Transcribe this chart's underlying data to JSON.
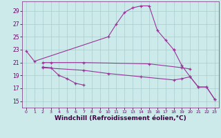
{
  "background_color": "#cceaea",
  "grid_color": "#aacccc",
  "line_color": "#993399",
  "xlabel": "Windchill (Refroidissement éolien,°C)",
  "xlabel_fontsize": 6.5,
  "ylim": [
    14.0,
    30.5
  ],
  "xlim": [
    -0.5,
    23.5
  ],
  "yticks": [
    15,
    17,
    19,
    21,
    23,
    25,
    27,
    29
  ],
  "xticks": [
    0,
    1,
    2,
    3,
    4,
    5,
    6,
    7,
    8,
    9,
    10,
    11,
    12,
    13,
    14,
    15,
    16,
    17,
    18,
    19,
    20,
    21,
    22,
    23
  ],
  "curve1_x": [
    0,
    1,
    10,
    11,
    12,
    13,
    14,
    15,
    16,
    17,
    18
  ],
  "curve1_y": [
    22.8,
    21.2,
    25.0,
    27.0,
    28.8,
    29.5,
    29.8,
    29.8,
    26.0,
    24.5,
    23.0
  ],
  "curve2_x": [
    2,
    3,
    7,
    15,
    19,
    20
  ],
  "curve2_y": [
    21.0,
    21.0,
    21.0,
    20.8,
    20.2,
    20.0
  ],
  "curve3_x": [
    2,
    3,
    4,
    5,
    6,
    7
  ],
  "curve3_y": [
    20.3,
    20.2,
    19.0,
    18.5,
    17.8,
    17.5
  ],
  "curve4_x": [
    2,
    7,
    10,
    14,
    18,
    19,
    20,
    21,
    22,
    23
  ],
  "curve4_y": [
    20.2,
    19.8,
    19.3,
    18.8,
    18.3,
    18.5,
    18.8,
    17.2,
    17.2,
    15.3
  ],
  "curve5_x": [
    18,
    19,
    20,
    21,
    22,
    23
  ],
  "curve5_y": [
    23.0,
    20.5,
    18.8,
    17.2,
    17.2,
    15.3
  ]
}
